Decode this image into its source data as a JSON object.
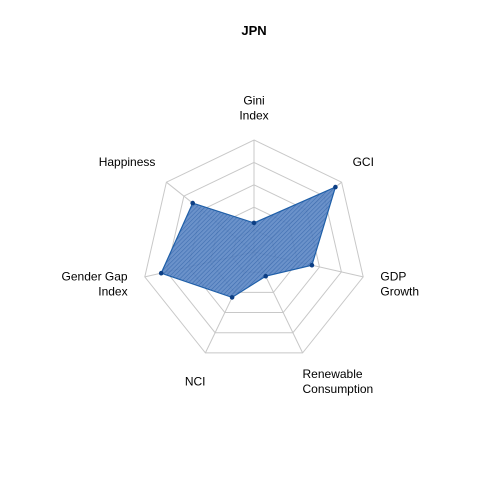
{
  "chart_data": {
    "type": "radar",
    "title": "JPN",
    "axes": [
      "Gini\nIndex",
      "GCI",
      "GDP\nGrowth",
      "Renewable\nConsumption",
      "NCI",
      "Gender Gap\nIndex",
      "Happiness"
    ],
    "series": [
      {
        "values": [
          0.26,
          0.93,
          0.53,
          0.24,
          0.45,
          0.85,
          0.7
        ]
      }
    ],
    "range": [
      0,
      1
    ],
    "grid_levels": 5,
    "grid": true,
    "legend": "none",
    "colors": {
      "fill": "#1f5fa8",
      "line": "#1f5fa8",
      "point": "#0d3f85",
      "grid": "#c8c8c8"
    }
  }
}
